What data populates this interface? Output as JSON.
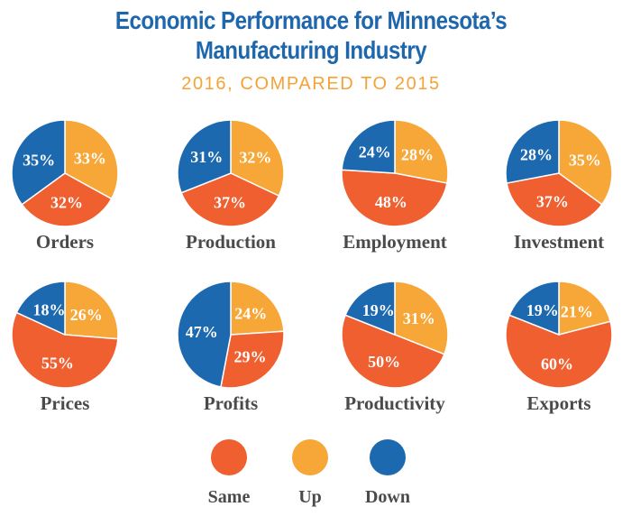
{
  "header": {
    "title_line1": "Economic Performance for Minnesota’s",
    "title_line2": "Manufacturing Industry",
    "subtitle": "2016, COMPARED TO 2015"
  },
  "colors": {
    "Same": "#ef5f30",
    "Up": "#f7a738",
    "Down": "#1c69af"
  },
  "chart_data": {
    "type": "pie",
    "legend": {
      "placement": "bottom",
      "entries": [
        "Same",
        "Up",
        "Down"
      ]
    },
    "charts": [
      {
        "name": "Orders",
        "up": 33,
        "same": 32,
        "down": 35
      },
      {
        "name": "Production",
        "up": 32,
        "same": 37,
        "down": 31
      },
      {
        "name": "Employment",
        "up": 28,
        "same": 48,
        "down": 24
      },
      {
        "name": "Investment",
        "up": 35,
        "same": 37,
        "down": 28
      },
      {
        "name": "Prices",
        "up": 26,
        "same": 55,
        "down": 18
      },
      {
        "name": "Profits",
        "up": 24,
        "same": 29,
        "down": 47
      },
      {
        "name": "Productivity",
        "up": 31,
        "same": 50,
        "down": 19
      },
      {
        "name": "Exports",
        "up": 21,
        "same": 60,
        "down": 19
      }
    ]
  }
}
